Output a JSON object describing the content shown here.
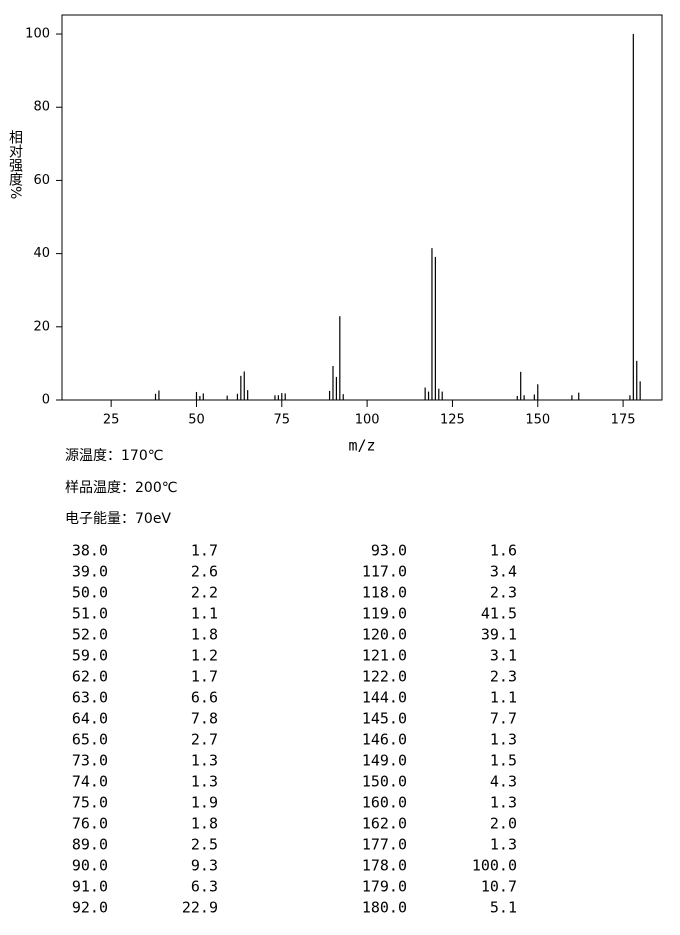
{
  "chart_data": {
    "type": "bar",
    "xlabel": "m/z",
    "ylabel": "相对强度%",
    "x": [
      38,
      39,
      50,
      51,
      52,
      59,
      62,
      63,
      64,
      65,
      73,
      74,
      75,
      76,
      89,
      90,
      91,
      92,
      93,
      117,
      118,
      119,
      120,
      121,
      122,
      144,
      145,
      146,
      149,
      150,
      160,
      162,
      177,
      178,
      179,
      180
    ],
    "values": [
      1.7,
      2.6,
      2.2,
      1.1,
      1.8,
      1.2,
      1.7,
      6.6,
      7.8,
      2.7,
      1.3,
      1.3,
      1.9,
      1.8,
      2.5,
      9.3,
      6.3,
      22.9,
      1.6,
      3.4,
      2.3,
      41.5,
      39.1,
      3.1,
      2.3,
      1.1,
      7.7,
      1.3,
      1.5,
      4.3,
      1.3,
      2.0,
      1.3,
      100.0,
      10.7,
      5.1
    ],
    "color": "#000000",
    "xlim": [
      10.6,
      186.4
    ],
    "xticks": [
      25,
      50,
      75,
      100,
      125,
      150,
      175
    ],
    "ylim": [
      0,
      105.2
    ],
    "yticks": [
      0,
      20,
      40,
      60,
      80,
      100
    ]
  },
  "info": [
    "源温度：170℃",
    "样品温度：200℃",
    "电子能量：70eV"
  ],
  "table": {
    "rows": [
      [
        "38.0",
        "1.7"
      ],
      [
        "39.0",
        "2.6"
      ],
      [
        "50.0",
        "2.2"
      ],
      [
        "51.0",
        "1.1"
      ],
      [
        "52.0",
        "1.8"
      ],
      [
        "59.0",
        "1.2"
      ],
      [
        "62.0",
        "1.7"
      ],
      [
        "63.0",
        "6.6"
      ],
      [
        "64.0",
        "7.8"
      ],
      [
        "65.0",
        "2.7"
      ],
      [
        "73.0",
        "1.3"
      ],
      [
        "74.0",
        "1.3"
      ],
      [
        "75.0",
        "1.9"
      ],
      [
        "76.0",
        "1.8"
      ],
      [
        "89.0",
        "2.5"
      ],
      [
        "90.0",
        "9.3"
      ],
      [
        "91.0",
        "6.3"
      ],
      [
        "92.0",
        "22.9"
      ],
      [
        "93.0",
        "1.6"
      ],
      [
        "117.0",
        "3.4"
      ],
      [
        "118.0",
        "2.3"
      ],
      [
        "119.0",
        "41.5"
      ],
      [
        "120.0",
        "39.1"
      ],
      [
        "121.0",
        "3.1"
      ],
      [
        "122.0",
        "2.3"
      ],
      [
        "144.0",
        "1.1"
      ],
      [
        "145.0",
        "7.7"
      ],
      [
        "146.0",
        "1.3"
      ],
      [
        "149.0",
        "1.5"
      ],
      [
        "150.0",
        "4.3"
      ],
      [
        "160.0",
        "1.3"
      ],
      [
        "162.0",
        "2.0"
      ],
      [
        "177.0",
        "1.3"
      ],
      [
        "178.0",
        "100.0"
      ],
      [
        "179.0",
        "10.7"
      ],
      [
        "180.0",
        "5.1"
      ]
    ]
  }
}
